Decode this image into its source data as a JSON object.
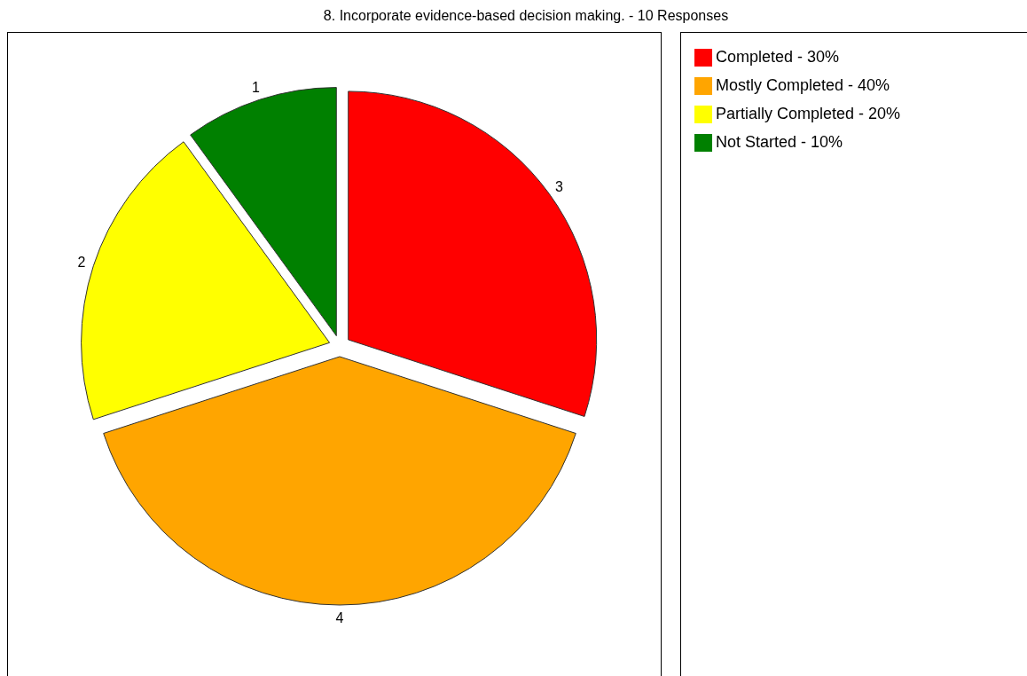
{
  "chart_data": {
    "type": "pie",
    "title": "8. Incorporate evidence-based decision making. - 10 Responses",
    "categories": [
      "Completed - 30%",
      "Mostly Completed - 40%",
      "Partially Completed - 20%",
      "Not Started - 10%"
    ],
    "values": [
      3,
      4,
      2,
      1
    ],
    "colors": [
      "#ff0000",
      "#ffa500",
      "#ffff00",
      "#008000"
    ],
    "data_labels": true,
    "legend": "right"
  }
}
